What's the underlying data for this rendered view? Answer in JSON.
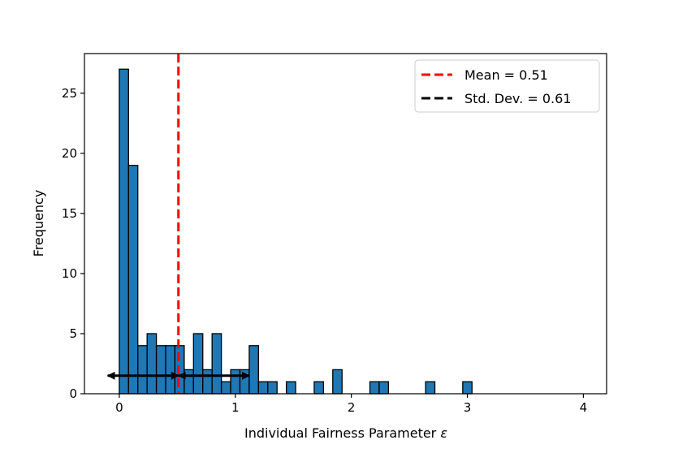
{
  "chart_data": {
    "type": "bar",
    "title": "",
    "xlabel": "Individual Fairness Parameter",
    "xlabel_symbol": "ε",
    "ylabel": "Frequency",
    "xlim": [
      -0.3,
      4.2
    ],
    "ylim": [
      0,
      28.3
    ],
    "xticks": [
      0,
      1,
      2,
      3,
      4
    ],
    "yticks": [
      0,
      5,
      10,
      15,
      20,
      25
    ],
    "xtick_labels": [
      "0",
      "1",
      "2",
      "3",
      "4"
    ],
    "ytick_labels": [
      "0",
      "5",
      "10",
      "15",
      "20",
      "25"
    ],
    "grid": false,
    "legend_position": "top-right",
    "bin_width": 0.08,
    "bins": [
      {
        "x_start": 0.0,
        "count": 27
      },
      {
        "x_start": 0.08,
        "count": 19
      },
      {
        "x_start": 0.16,
        "count": 4
      },
      {
        "x_start": 0.24,
        "count": 5
      },
      {
        "x_start": 0.32,
        "count": 4
      },
      {
        "x_start": 0.4,
        "count": 4
      },
      {
        "x_start": 0.48,
        "count": 4
      },
      {
        "x_start": 0.56,
        "count": 2
      },
      {
        "x_start": 0.64,
        "count": 5
      },
      {
        "x_start": 0.72,
        "count": 2
      },
      {
        "x_start": 0.8,
        "count": 5
      },
      {
        "x_start": 0.88,
        "count": 1
      },
      {
        "x_start": 0.96,
        "count": 2
      },
      {
        "x_start": 1.04,
        "count": 2
      },
      {
        "x_start": 1.12,
        "count": 4
      },
      {
        "x_start": 1.2,
        "count": 1
      },
      {
        "x_start": 1.28,
        "count": 1
      },
      {
        "x_start": 1.44,
        "count": 1
      },
      {
        "x_start": 1.68,
        "count": 1
      },
      {
        "x_start": 1.84,
        "count": 2
      },
      {
        "x_start": 2.16,
        "count": 1
      },
      {
        "x_start": 2.24,
        "count": 1
      },
      {
        "x_start": 2.64,
        "count": 1
      },
      {
        "x_start": 2.96,
        "count": 1
      }
    ],
    "mean": 0.51,
    "std_dev": 0.61,
    "std_arrow_y": 1.5,
    "legend": [
      {
        "label": "Mean = 0.51",
        "color": "#ff0000"
      },
      {
        "label": "Std. Dev. = 0.61",
        "color": "#000000"
      }
    ],
    "colors": {
      "bar_fill": "#1f77b4",
      "bar_edge": "#000000",
      "mean_line": "#ff0000",
      "std_arrow": "#000000"
    }
  }
}
